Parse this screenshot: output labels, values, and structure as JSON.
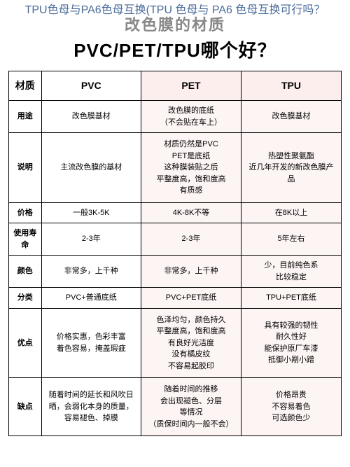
{
  "overlay": "TPU色母与PA6色母互换(TPU 色母与 PA6 色母互换可行吗？",
  "title": {
    "line1": "改色膜的材质",
    "line2": "PVC/PET/TPU哪个好？"
  },
  "table": {
    "header": {
      "corner": "材质",
      "pvc": "PVC",
      "pet": "PET",
      "tpu": "TPU"
    },
    "rows": [
      {
        "label": "用途",
        "pvc": "改色膜基材",
        "pet": "改色膜的底纸\n（不会贴在车上）",
        "tpu": "改色膜基材"
      },
      {
        "label": "说明",
        "pvc": "主流改色膜的基材",
        "pet": "材质仍然是PVC\nPET是底纸\n这种膜装贴之后\n平整度高，饱和度高\n有质感",
        "tpu": "热塑性聚氨酯\n近几年开发的新改色膜产\n品"
      },
      {
        "label": "价格",
        "pvc": "一般3K-5K",
        "pet": "4K-8K不等",
        "tpu": "在8K以上"
      },
      {
        "label": "使用寿命",
        "pvc": "2-3年",
        "pet": "2-3年",
        "tpu": "5年左右"
      },
      {
        "label": "颜色",
        "pvc": "非常多，上千种",
        "pet": "非常多，上千种",
        "tpu": "少，目前纯色系\n比较稳定"
      },
      {
        "label": "分类",
        "pvc": "PVC+普通底纸",
        "pet": "PVC+PET底纸",
        "tpu": "TPU+PET底纸"
      },
      {
        "label": "优点",
        "pvc": "价格实惠，色彩丰富\n着色容易，掩盖瑕疵",
        "pet": "色泽均匀，颜色持久\n平整度高，饱和度高\n有良好光洁度\n没有橘皮纹\n不容易起胶印",
        "tpu": "具有较强的韧性\n耐久性好\n能保护原厂车漆\n抵御小剐小蹭"
      },
      {
        "label": "缺点",
        "pvc": "随着时间的延长和风吹日\n晒，会弱化本身的质量，\n容易褪色、掉膜",
        "pet": "随着时间的推移\n会出现褪色、分层\n等情况\n（质保时间内一般不会）",
        "tpu": "价格昂贵\n不容易着色\n可选颜色少"
      }
    ]
  },
  "colors": {
    "pink": "#fdeeee",
    "pink_light": "#fdf4f4",
    "overlay_color": "#4a6b99",
    "title_gray": "#888888"
  }
}
